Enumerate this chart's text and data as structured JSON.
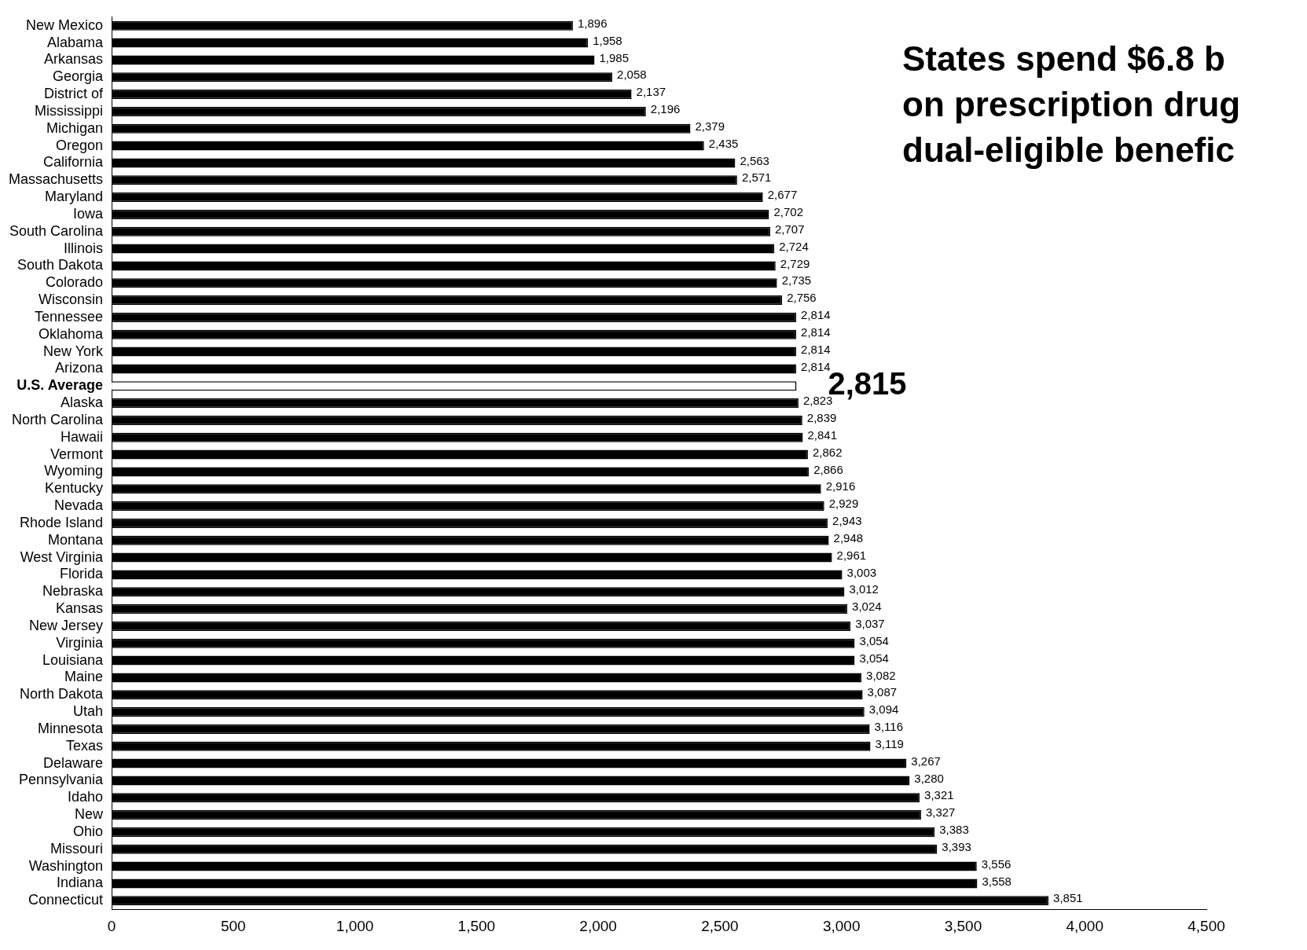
{
  "chart_data": {
    "type": "bar",
    "orientation": "horizontal",
    "title": "States spend $6.8 b\non prescription drug\ndual-eligible benefic",
    "categories": [
      "New Mexico",
      "Alabama",
      "Arkansas",
      "Georgia",
      "District of",
      "Mississippi",
      "Michigan",
      "Oregon",
      "California",
      "Massachusetts",
      "Maryland",
      "Iowa",
      "South Carolina",
      "Illinois",
      "South Dakota",
      "Colorado",
      "Wisconsin",
      "Tennessee",
      "Oklahoma",
      "New York",
      "Arizona",
      "U.S. Average",
      "Alaska",
      "North Carolina",
      "Hawaii",
      "Vermont",
      "Wyoming",
      "Kentucky",
      "Nevada",
      "Rhode Island",
      "Montana",
      "West Virginia",
      "Florida",
      "Nebraska",
      "Kansas",
      "New Jersey",
      "Virginia",
      "Louisiana",
      "Maine",
      "North Dakota",
      "Utah",
      "Minnesota",
      "Texas",
      "Delaware",
      "Pennsylvania",
      "Idaho",
      "New",
      "Ohio",
      "Missouri",
      "Washington",
      "Indiana",
      "Connecticut"
    ],
    "values": [
      1896,
      1958,
      1985,
      2058,
      2137,
      2196,
      2379,
      2435,
      2563,
      2571,
      2677,
      2702,
      2707,
      2724,
      2729,
      2735,
      2756,
      2814,
      2814,
      2814,
      2814,
      2815,
      2823,
      2839,
      2841,
      2862,
      2866,
      2916,
      2929,
      2943,
      2948,
      2961,
      3003,
      3012,
      3024,
      3037,
      3054,
      3054,
      3082,
      3087,
      3094,
      3116,
      3119,
      3267,
      3280,
      3321,
      3327,
      3383,
      3393,
      3556,
      3558,
      3851
    ],
    "colors": [
      "#000000",
      "#000000",
      "#000000",
      "#000000",
      "#000000",
      "#000000",
      "#000000",
      "#000000",
      "#000000",
      "#000000",
      "#000000",
      "#000000",
      "#000000",
      "#000000",
      "#000000",
      "#000000",
      "#000000",
      "#000000",
      "#000000",
      "#000000",
      "#000000",
      "#ffffff",
      "#000000",
      "#000000",
      "#000000",
      "#000000",
      "#000000",
      "#000000",
      "#000000",
      "#000000",
      "#000000",
      "#000000",
      "#000000",
      "#000000",
      "#000000",
      "#000000",
      "#000000",
      "#000000",
      "#000000",
      "#000000",
      "#000000",
      "#000000",
      "#000000",
      "#000000",
      "#000000",
      "#000000",
      "#000000",
      "#000000",
      "#000000",
      "#000000",
      "#000000",
      "#000000"
    ],
    "xlim": [
      0,
      4500
    ],
    "xticks": [
      0,
      500,
      {
        "value": 1000,
        "label": "1,000"
      },
      {
        "value": 1500,
        "label": "1,500"
      },
      {
        "value": 2000,
        "label": "2,000"
      },
      {
        "value": 2500,
        "label": "2,500"
      },
      {
        "value": 3000,
        "label": "3,000"
      },
      {
        "value": 3500,
        "label": "3,500"
      },
      {
        "value": 4000,
        "label": "4,000"
      },
      {
        "value": 4500,
        "label": "4,500"
      }
    ],
    "value_labels": [
      "1,896",
      "1,958",
      "1,985",
      "2,058",
      "2,137",
      "2,196",
      "2,379",
      "2,435",
      "2,563",
      "2,571",
      "2,677",
      "2,702",
      "2,707",
      "2,724",
      "2,729",
      "2,735",
      "2,756",
      "2,814",
      "2,814",
      "2,814",
      "2,814",
      "2,815",
      "2,823",
      "2,839",
      "2,841",
      "2,862",
      "2,866",
      "2,916",
      "2,929",
      "2,943",
      "2,948",
      "2,961",
      "3,003",
      "3,012",
      "3,024",
      "3,037",
      "3,054",
      "3,054",
      "3,082",
      "3,087",
      "3,094",
      "3,116",
      "3,119",
      "3,267",
      "3,280",
      "3,321",
      "3,327",
      "3,383",
      "3,393",
      "3,556",
      "3,558",
      "3,851"
    ],
    "grid": false,
    "legend": false
  }
}
